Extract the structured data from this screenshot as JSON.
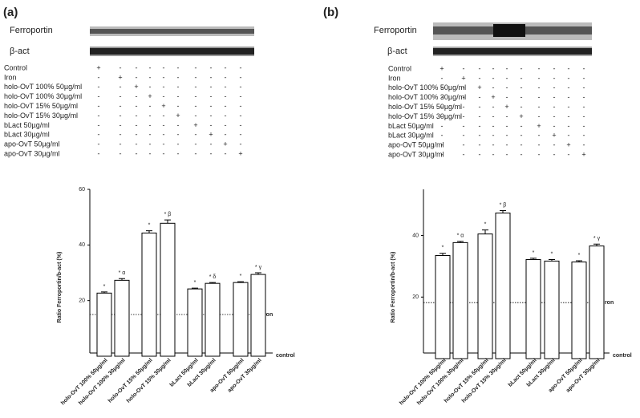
{
  "panels": [
    {
      "label": "(a)",
      "blot_labels": [
        "Ferroportin",
        "β-act"
      ],
      "treatments": [
        {
          "name": "Control",
          "signs": [
            "+",
            "-",
            "-",
            "-",
            "-",
            "-",
            "-",
            "-",
            "-",
            "-"
          ]
        },
        {
          "name": "Iron",
          "signs": [
            "-",
            "+",
            "-",
            "-",
            "-",
            "-",
            "-",
            "-",
            "-",
            "-"
          ]
        },
        {
          "name": "holo-OvT 100% 50µg/ml",
          "signs": [
            "-",
            "-",
            "+",
            "-",
            "-",
            "-",
            "-",
            "-",
            "-",
            "-"
          ]
        },
        {
          "name": "holo-OvT 100% 30µg/ml",
          "signs": [
            "-",
            "-",
            "-",
            "+",
            "-",
            "-",
            "-",
            "-",
            "-",
            "-"
          ]
        },
        {
          "name": "holo-OvT 15% 50µg/ml",
          "signs": [
            "-",
            "-",
            "-",
            "-",
            "+",
            "-",
            "-",
            "-",
            "-",
            "-"
          ]
        },
        {
          "name": "holo-OvT 15% 30µg/ml",
          "signs": [
            "-",
            "-",
            "-",
            "-",
            "-",
            "+",
            "-",
            "-",
            "-",
            "-"
          ]
        },
        {
          "name": "bLact 50µg/ml",
          "signs": [
            "-",
            "-",
            "-",
            "-",
            "-",
            "-",
            "+",
            "-",
            "-",
            "-"
          ]
        },
        {
          "name": "bLact 30µg/ml",
          "signs": [
            "-",
            "-",
            "-",
            "-",
            "-",
            "-",
            "-",
            "+",
            "-",
            "-"
          ]
        },
        {
          "name": "apo-OvT 50µg/ml",
          "signs": [
            "-",
            "-",
            "-",
            "-",
            "-",
            "-",
            "-",
            "-",
            "+",
            "-"
          ]
        },
        {
          "name": "apo-OvT 30µg/ml",
          "signs": [
            "-",
            "-",
            "-",
            "-",
            "-",
            "-",
            "-",
            "-",
            "-",
            "+"
          ]
        }
      ]
    },
    {
      "label": "(b)",
      "blot_labels": [
        "Ferroportin",
        "β-act"
      ],
      "treatments": [
        {
          "name": "Control",
          "signs": [
            "+",
            "-",
            "-",
            "-",
            "-",
            "-",
            "-",
            "-",
            "-",
            "-"
          ]
        },
        {
          "name": "Iron",
          "signs": [
            "-",
            "+",
            "-",
            "-",
            "-",
            "-",
            "-",
            "-",
            "-",
            "-"
          ]
        },
        {
          "name": "holo-OvT 100% 50µg/ml",
          "signs": [
            "-",
            "-",
            "+",
            "-",
            "-",
            "-",
            "-",
            "-",
            "-",
            "-"
          ]
        },
        {
          "name": "holo-OvT 100% 30µg/ml",
          "signs": [
            "-",
            "-",
            "-",
            "+",
            "-",
            "-",
            "-",
            "-",
            "-",
            "-"
          ]
        },
        {
          "name": "holo-OvT 15% 50µg/ml",
          "signs": [
            "-",
            "-",
            "-",
            "-",
            "+",
            "-",
            "-",
            "-",
            "-",
            "-"
          ]
        },
        {
          "name": "holo-OvT 15% 30µg/ml",
          "signs": [
            "-",
            "-",
            "-",
            "-",
            "-",
            "+",
            "-",
            "-",
            "-",
            "-"
          ]
        },
        {
          "name": "bLact 50µg/ml",
          "signs": [
            "-",
            "-",
            "-",
            "-",
            "-",
            "-",
            "+",
            "-",
            "-",
            "-"
          ]
        },
        {
          "name": "bLact 30µg/ml",
          "signs": [
            "-",
            "-",
            "-",
            "-",
            "-",
            "-",
            "-",
            "+",
            "-",
            "-"
          ]
        },
        {
          "name": "apo-OvT 50µg/ml",
          "signs": [
            "-",
            "-",
            "-",
            "-",
            "-",
            "-",
            "-",
            "-",
            "+",
            "-"
          ]
        },
        {
          "name": "apo-OvT 30µg/ml",
          "signs": [
            "-",
            "-",
            "-",
            "-",
            "-",
            "-",
            "-",
            "-",
            "-",
            "+"
          ]
        }
      ]
    }
  ],
  "chart_data": [
    {
      "type": "bar",
      "ylabel": "Ratio Ferroportin/b-act (%)",
      "categories": [
        "holo-OvT 100% 50µg/ml",
        "holo-OvT 100% 30µg/ml",
        "holo-OvT 15% 50µg/ml",
        "holo-OvT 15% 30µg/ml",
        "bLact 50µg/ml",
        "bLact 30µg/ml",
        "apo-OvT 50µg/ml",
        "apo-OvT 30µg/ml"
      ],
      "values": [
        22.7,
        27.3,
        44.3,
        47.8,
        24.2,
        26.2,
        26.5,
        29.4
      ],
      "errors": [
        0.4,
        0.6,
        0.8,
        1.2,
        0.3,
        0.3,
        0.3,
        0.6
      ],
      "annotations": [
        "*",
        "* α",
        "*",
        "* β",
        "*",
        "* δ",
        "*",
        "* γ"
      ],
      "reference_lines": [
        {
          "label": "Iron",
          "value": 15
        }
      ],
      "baseline_label": "control",
      "color": "#ffffff",
      "ylim": [
        0,
        60
      ],
      "yticks": [
        20,
        40,
        60
      ]
    },
    {
      "type": "bar",
      "ylabel": "Ratio Ferroportin/b-act (%)",
      "categories": [
        "holo-OvT 100% 50µg/ml",
        "holo-OvT 100% 30µg/ml",
        "holo-OvT 15% 50µg/ml",
        "holo-OvT 15% 30µg/ml",
        "bLact 50µg/ml",
        "bLact 30µg/ml",
        "apo-OvT 50µg/ml",
        "apo-OvT 30µg/ml"
      ],
      "values": [
        33.5,
        37.7,
        40.5,
        47.3,
        32.2,
        31.7,
        31.4,
        36.6
      ],
      "errors": [
        0.7,
        0.4,
        1.3,
        0.8,
        0.4,
        0.5,
        0.4,
        0.6
      ],
      "annotations": [
        "*",
        "* α",
        "*",
        "* β",
        "*",
        "*",
        "*",
        "* γ"
      ],
      "reference_lines": [
        {
          "label": "Iron",
          "value": 18.2
        }
      ],
      "baseline_label": "control",
      "color": "#ffffff",
      "ylim": [
        0,
        55
      ],
      "yticks": [
        20,
        40
      ]
    }
  ]
}
